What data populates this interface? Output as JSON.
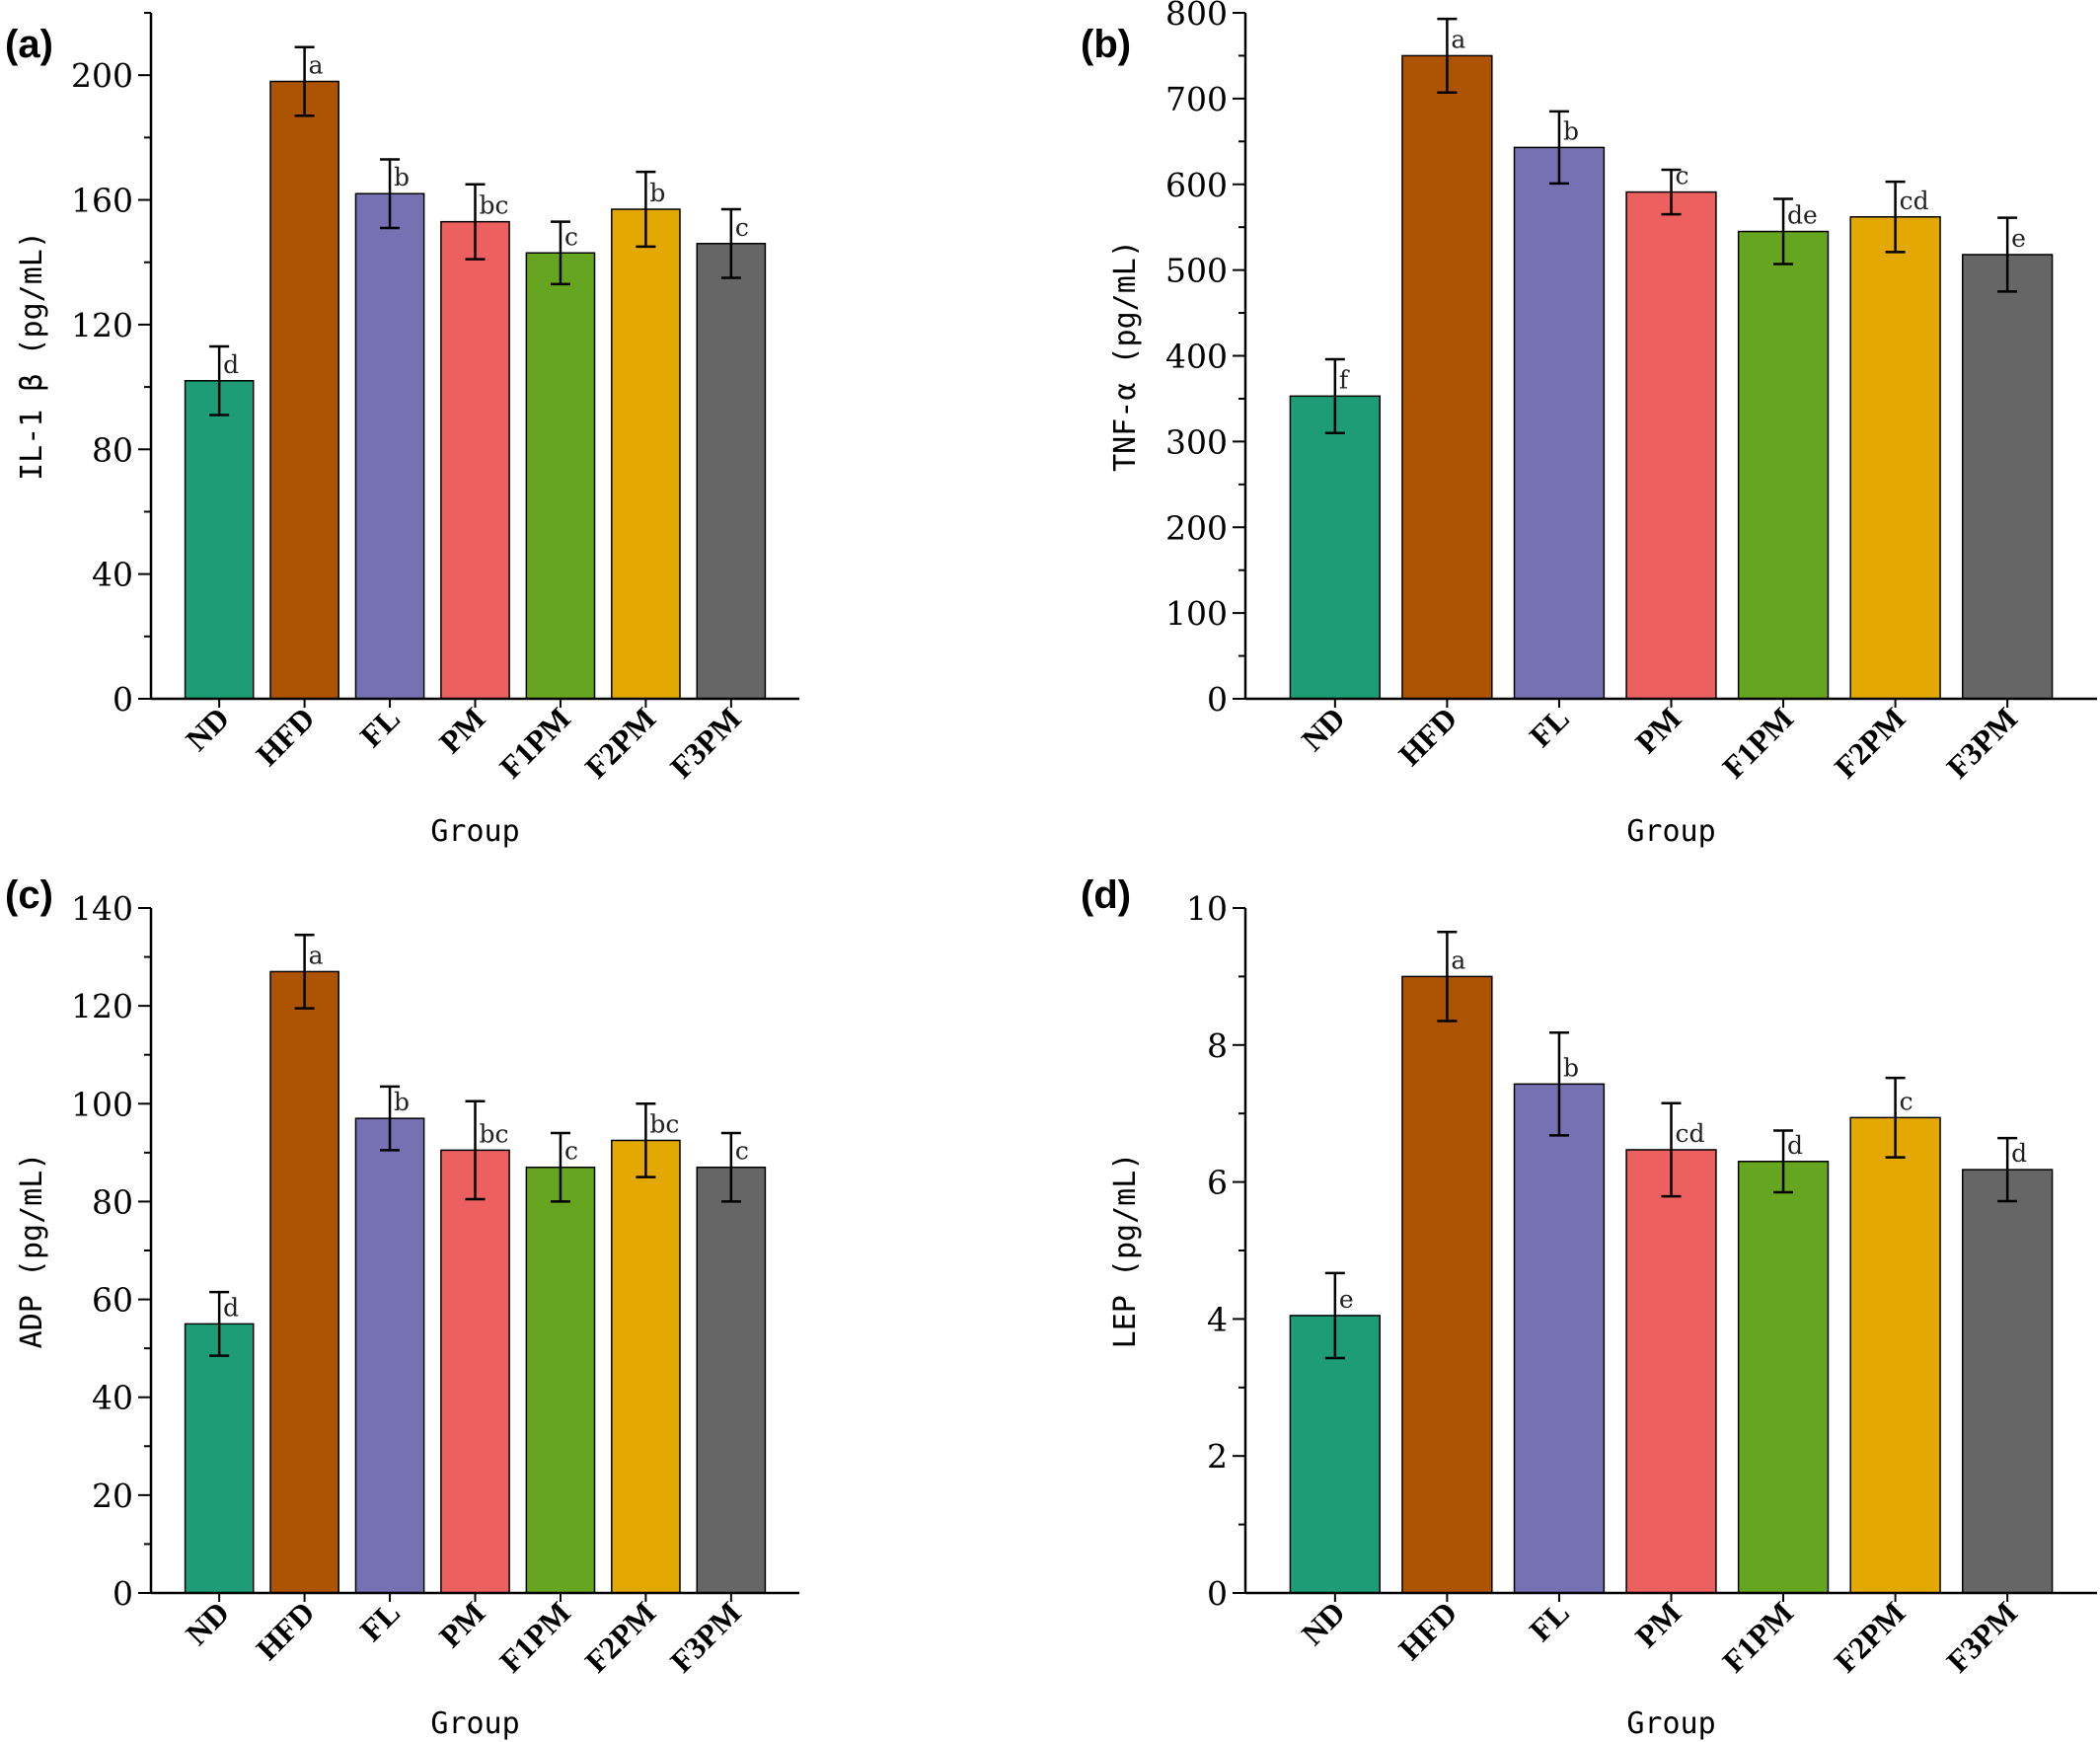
{
  "figure": {
    "colors": {
      "ND": "#1e9c76",
      "HFD": "#ac5402",
      "FL": "#7571b3",
      "PM": "#ec6160",
      "F1PM": "#65a520",
      "F2PM": "#e3a902",
      "F3PM": "#666666"
    }
  },
  "chart_data": [
    {
      "type": "bar",
      "panel": "(a)",
      "categories": [
        "ND",
        "HFD",
        "FL",
        "PM",
        "F1PM",
        "F2PM",
        "F3PM"
      ],
      "values": [
        102,
        198,
        162,
        153,
        143,
        157,
        146
      ],
      "errors": [
        11,
        11,
        11,
        12,
        10,
        12,
        11
      ],
      "significance": [
        "d",
        "a",
        "b",
        "bc",
        "c",
        "b",
        "c"
      ],
      "xlabel": "Group",
      "ylabel": "IL-1 β (pg/mL)",
      "ylim": [
        0,
        220
      ],
      "yticks": [
        0,
        40,
        80,
        120,
        160,
        200
      ],
      "ytick_labels": [
        "0",
        "40",
        "80",
        "120",
        "160",
        "200"
      ],
      "minor_tick_step": 20
    },
    {
      "type": "bar",
      "panel": "(b)",
      "categories": [
        "ND",
        "HFD",
        "FL",
        "PM",
        "F1PM",
        "F2PM",
        "F3PM"
      ],
      "values": [
        353,
        750,
        643,
        591,
        545,
        562,
        518
      ],
      "errors": [
        43,
        43,
        42,
        26,
        38,
        41,
        43
      ],
      "significance": [
        "f",
        "a",
        "b",
        "c",
        "de",
        "cd",
        "e"
      ],
      "xlabel": "Group",
      "ylabel": "TNF-α (pg/mL)",
      "ylim": [
        0,
        800
      ],
      "yticks": [
        0,
        100,
        200,
        300,
        400,
        500,
        600,
        700,
        800
      ],
      "ytick_labels": [
        "0",
        "100",
        "200",
        "300",
        "400",
        "500",
        "600",
        "700",
        "800"
      ],
      "minor_tick_step": 50
    },
    {
      "type": "bar",
      "panel": "(c)",
      "categories": [
        "ND",
        "HFD",
        "FL",
        "PM",
        "F1PM",
        "F2PM",
        "F3PM"
      ],
      "values": [
        55,
        127,
        97,
        90.5,
        87,
        92.5,
        87
      ],
      "errors": [
        6.5,
        7.5,
        6.5,
        10,
        7,
        7.5,
        7
      ],
      "significance": [
        "d",
        "a",
        "b",
        "bc",
        "c",
        "bc",
        "c"
      ],
      "xlabel": "Group",
      "ylabel": "ADP (pg/mL)",
      "ylim": [
        0,
        140
      ],
      "yticks": [
        0,
        20,
        40,
        60,
        80,
        100,
        120,
        140
      ],
      "ytick_labels": [
        "0",
        "20",
        "40",
        "60",
        "80",
        "100",
        "120",
        "140"
      ],
      "minor_tick_step": 10
    },
    {
      "type": "bar",
      "panel": "(d)",
      "categories": [
        "ND",
        "HFD",
        "FL",
        "PM",
        "F1PM",
        "F2PM",
        "F3PM"
      ],
      "values": [
        4.05,
        9.0,
        7.43,
        6.47,
        6.3,
        6.94,
        6.18
      ],
      "errors": [
        0.62,
        0.65,
        0.75,
        0.68,
        0.45,
        0.58,
        0.46
      ],
      "significance": [
        "e",
        "a",
        "b",
        "cd",
        "d",
        "c",
        "d"
      ],
      "xlabel": "Group",
      "ylabel": "LEP (pg/mL)",
      "ylim": [
        0,
        10
      ],
      "yticks": [
        0,
        2,
        4,
        6,
        8,
        10
      ],
      "ytick_labels": [
        "0",
        "2",
        "4",
        "6",
        "8",
        "10"
      ],
      "minor_tick_step": 1
    }
  ]
}
